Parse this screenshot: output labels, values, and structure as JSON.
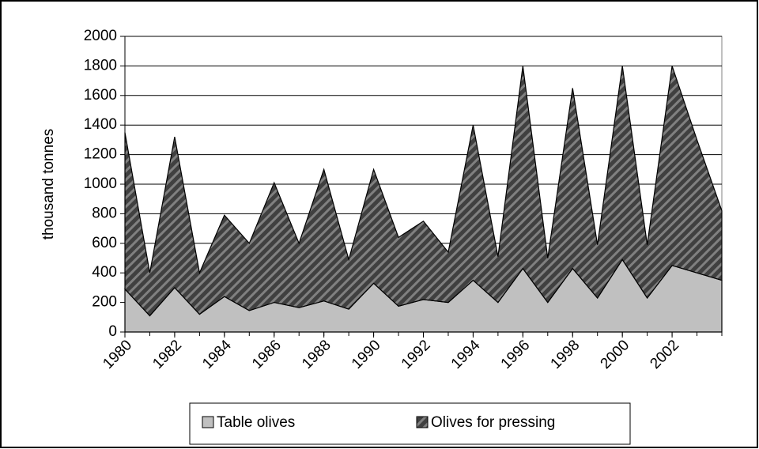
{
  "chart_data": {
    "type": "area",
    "stacked": true,
    "y_label": "thousand tonnes",
    "x": [
      1980,
      1981,
      1982,
      1983,
      1984,
      1985,
      1986,
      1987,
      1988,
      1989,
      1990,
      1991,
      1992,
      1993,
      1994,
      1995,
      1996,
      1997,
      1998,
      1999,
      2000,
      2001,
      2002,
      2003,
      2004
    ],
    "series": [
      {
        "name": "Table olives",
        "color": "#c0c0c0",
        "values": [
          290,
          110,
          300,
          120,
          240,
          145,
          200,
          165,
          210,
          155,
          330,
          175,
          220,
          200,
          350,
          200,
          430,
          200,
          430,
          230,
          490,
          230,
          450,
          400,
          350
        ]
      },
      {
        "name": "Olives for pressing",
        "color": "#404040",
        "values": [
          1060,
          290,
          1020,
          280,
          550,
          455,
          810,
          435,
          890,
          335,
          770,
          465,
          530,
          340,
          1050,
          310,
          1370,
          300,
          1220,
          360,
          1310,
          360,
          1350,
          900,
          470
        ]
      }
    ],
    "xlim": [
      1980,
      2004
    ],
    "xticks": [
      1980,
      1982,
      1984,
      1986,
      1988,
      1990,
      1992,
      1994,
      1996,
      1998,
      2000,
      2002
    ],
    "ylim": [
      0,
      2000
    ],
    "yticks": [
      0,
      200,
      400,
      600,
      800,
      1000,
      1200,
      1400,
      1600,
      1800,
      2000
    ],
    "grid": true,
    "legend": "bottom"
  }
}
